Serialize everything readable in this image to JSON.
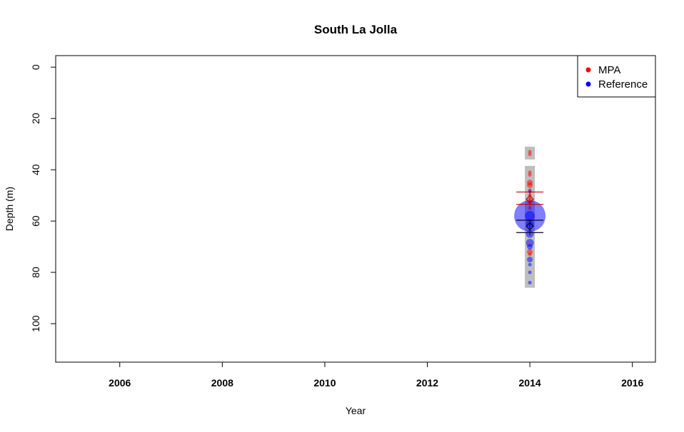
{
  "chart_data": {
    "type": "scatter",
    "title": "South La Jolla",
    "xlabel": "Year",
    "ylabel": "Depth (m)",
    "xlim": [
      2004.75,
      2016.45
    ],
    "ylim": [
      115,
      -4.5
    ],
    "y_reversed": true,
    "xticks": [
      2006,
      2008,
      2010,
      2012,
      2014,
      2016
    ],
    "yticks": [
      0,
      20,
      40,
      60,
      80,
      100
    ],
    "grid": false,
    "legend": {
      "position": "top-right",
      "entries": [
        {
          "label": "MPA",
          "color": "#ff0000"
        },
        {
          "label": "Reference",
          "color": "#0000ff"
        }
      ]
    },
    "depth_ranges_surveyed": [
      {
        "year": 2014,
        "from": 31,
        "to": 36
      },
      {
        "year": 2014,
        "from": 38.5,
        "to": 86
      }
    ],
    "series": [
      {
        "name": "MPA",
        "color": "#ff0000",
        "points": [
          {
            "year": 2014,
            "depth": 33,
            "size": 1
          },
          {
            "year": 2014,
            "depth": 34,
            "size": 1
          },
          {
            "year": 2014,
            "depth": 41,
            "size": 1
          },
          {
            "year": 2014,
            "depth": 42,
            "size": 1
          },
          {
            "year": 2014,
            "depth": 45,
            "size": 2
          },
          {
            "year": 2014,
            "depth": 46,
            "size": 2
          },
          {
            "year": 2014,
            "depth": 48,
            "size": 1
          },
          {
            "year": 2014,
            "depth": 50,
            "size": 1
          },
          {
            "year": 2014,
            "depth": 52,
            "size": 2
          },
          {
            "year": 2014,
            "depth": 53,
            "size": 1
          },
          {
            "year": 2014,
            "depth": 55,
            "size": 1
          },
          {
            "year": 2014,
            "depth": 72,
            "size": 2
          },
          {
            "year": 2014,
            "depth": 73,
            "size": 1
          }
        ],
        "mean": {
          "year": 2014,
          "depth": 51.5,
          "lower": 49.5,
          "upper": 53.5
        }
      },
      {
        "name": "Reference",
        "color": "#0000ff",
        "points": [
          {
            "year": 2014,
            "depth": 48.5,
            "size": 1
          },
          {
            "year": 2014,
            "depth": 58,
            "size": 14
          },
          {
            "year": 2014,
            "depth": 58,
            "size": 4
          },
          {
            "year": 2014,
            "depth": 61,
            "size": 3
          },
          {
            "year": 2014,
            "depth": 65,
            "size": 3
          },
          {
            "year": 2014,
            "depth": 68.5,
            "size": 3
          },
          {
            "year": 2014,
            "depth": 70,
            "size": 2
          },
          {
            "year": 2014,
            "depth": 75,
            "size": 2
          },
          {
            "year": 2014,
            "depth": 77,
            "size": 1
          },
          {
            "year": 2014,
            "depth": 80,
            "size": 1
          },
          {
            "year": 2014,
            "depth": 84,
            "size": 1
          }
        ],
        "mean": {
          "year": 2014,
          "depth": 62,
          "lower": 60.5,
          "upper": 64.5
        }
      }
    ]
  }
}
